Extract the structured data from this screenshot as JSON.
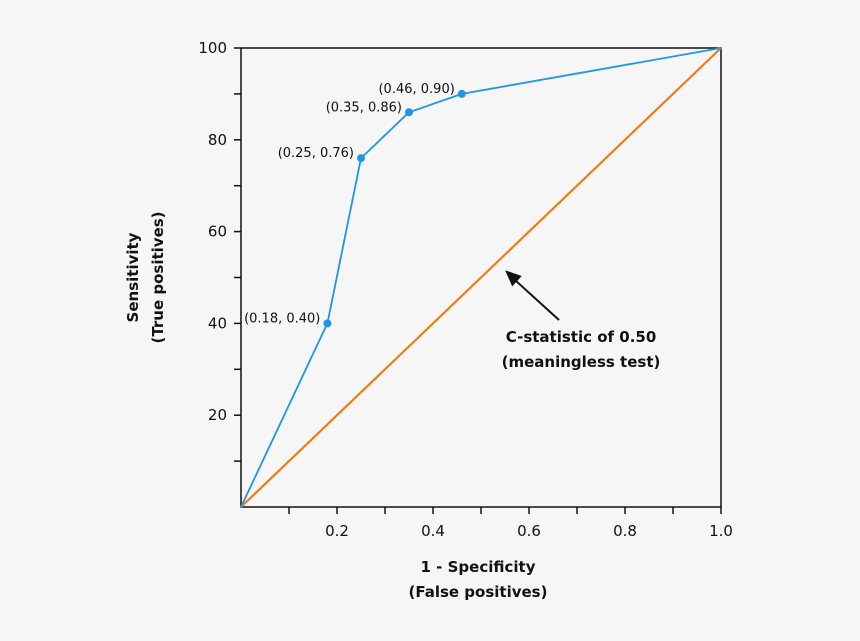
{
  "chart_data": {
    "type": "line",
    "xlabel": [
      "1 - Specificity",
      "(False positives)"
    ],
    "ylabel": [
      "Sensitivity",
      "(True positives)"
    ],
    "xlim": [
      0,
      1.0
    ],
    "ylim": [
      0,
      100
    ],
    "x_ticks": [
      0.1,
      0.2,
      0.3,
      0.4,
      0.5,
      0.6,
      0.7,
      0.8,
      0.9,
      1.0
    ],
    "x_tick_labels": [
      "0.2",
      "0.4",
      "0.6",
      "0.8",
      "1.0"
    ],
    "y_ticks": [
      10,
      20,
      30,
      40,
      50,
      60,
      70,
      80,
      90,
      100
    ],
    "y_tick_labels": [
      "20",
      "40",
      "60",
      "80",
      "100"
    ],
    "grid": false,
    "series": [
      {
        "color": "#1e96e6",
        "x": [
          0,
          0.18,
          0.25,
          0.35,
          0.46,
          1.0
        ],
        "y": [
          0,
          40,
          76,
          86,
          90,
          100
        ],
        "point_labels": [
          "",
          "(0.18, 0.40)",
          "(0.25, 0.76)",
          "(0.35, 0.86)",
          "(0.46, 0.90)",
          ""
        ],
        "markers": [
          false,
          true,
          true,
          true,
          true,
          false
        ]
      },
      {
        "color": "#f07d14",
        "x": [
          0,
          1.0
        ],
        "y": [
          0,
          100
        ]
      }
    ],
    "annotation": {
      "lines": [
        "C-statistic of 0.50",
        "(meaningless test)"
      ],
      "arrow_target": [
        0.54,
        52
      ]
    }
  }
}
